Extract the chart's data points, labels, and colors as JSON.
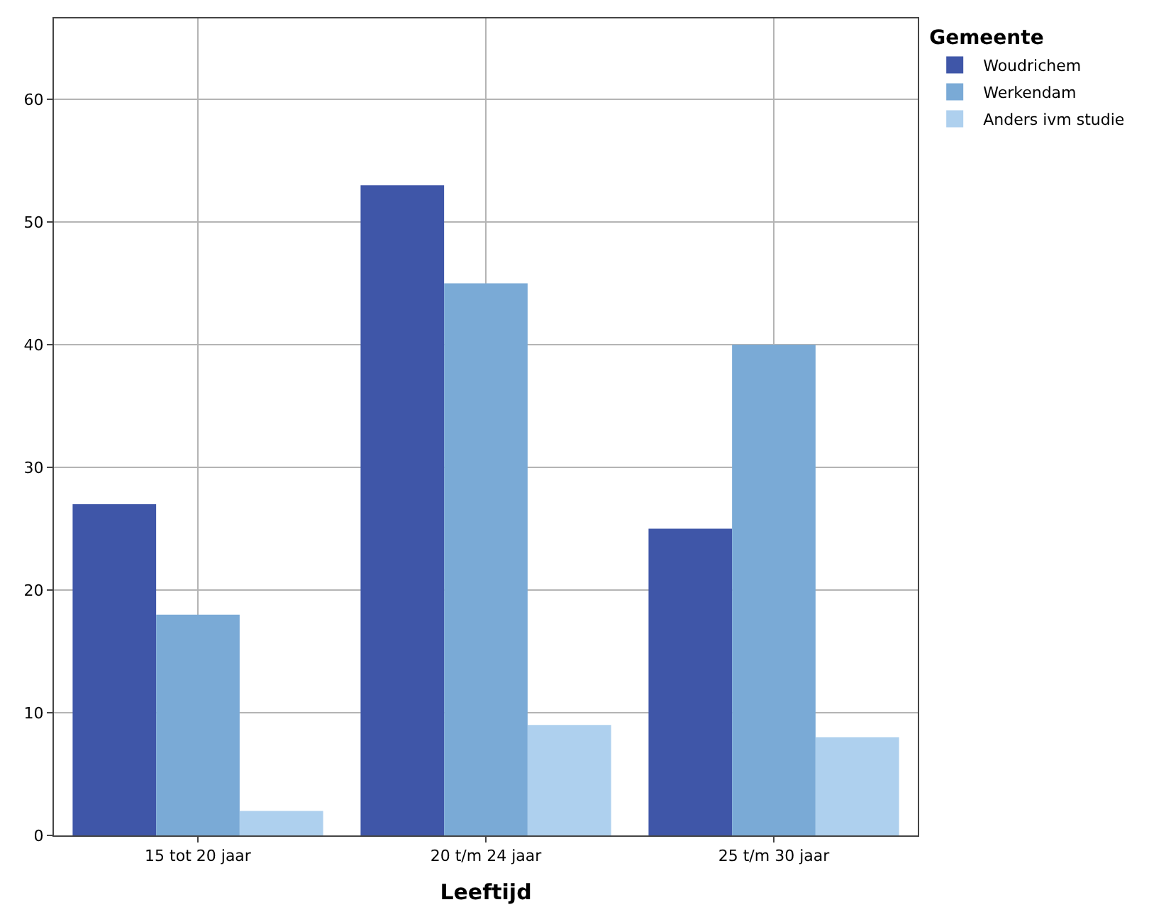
{
  "chart_data": {
    "type": "bar",
    "xlabel": "Leeftijd",
    "legend_title": "Gemeente",
    "categories": [
      "15 tot 20 jaar",
      "20 t/m 24 jaar",
      "25 t/m 30 jaar"
    ],
    "series": [
      {
        "name": "Woudrichem",
        "color": "#3f56a8",
        "values": [
          27,
          53,
          25
        ]
      },
      {
        "name": "Werkendam",
        "color": "#7aaad6",
        "values": [
          18,
          45,
          40
        ]
      },
      {
        "name": "Anders ivm studie",
        "color": "#aed0ee",
        "values": [
          2,
          9,
          8
        ]
      }
    ],
    "ylim": [
      0,
      66.6
    ],
    "yticks": [
      0,
      10,
      20,
      30,
      40,
      50,
      60
    ],
    "grid": true,
    "legend": "top right"
  }
}
